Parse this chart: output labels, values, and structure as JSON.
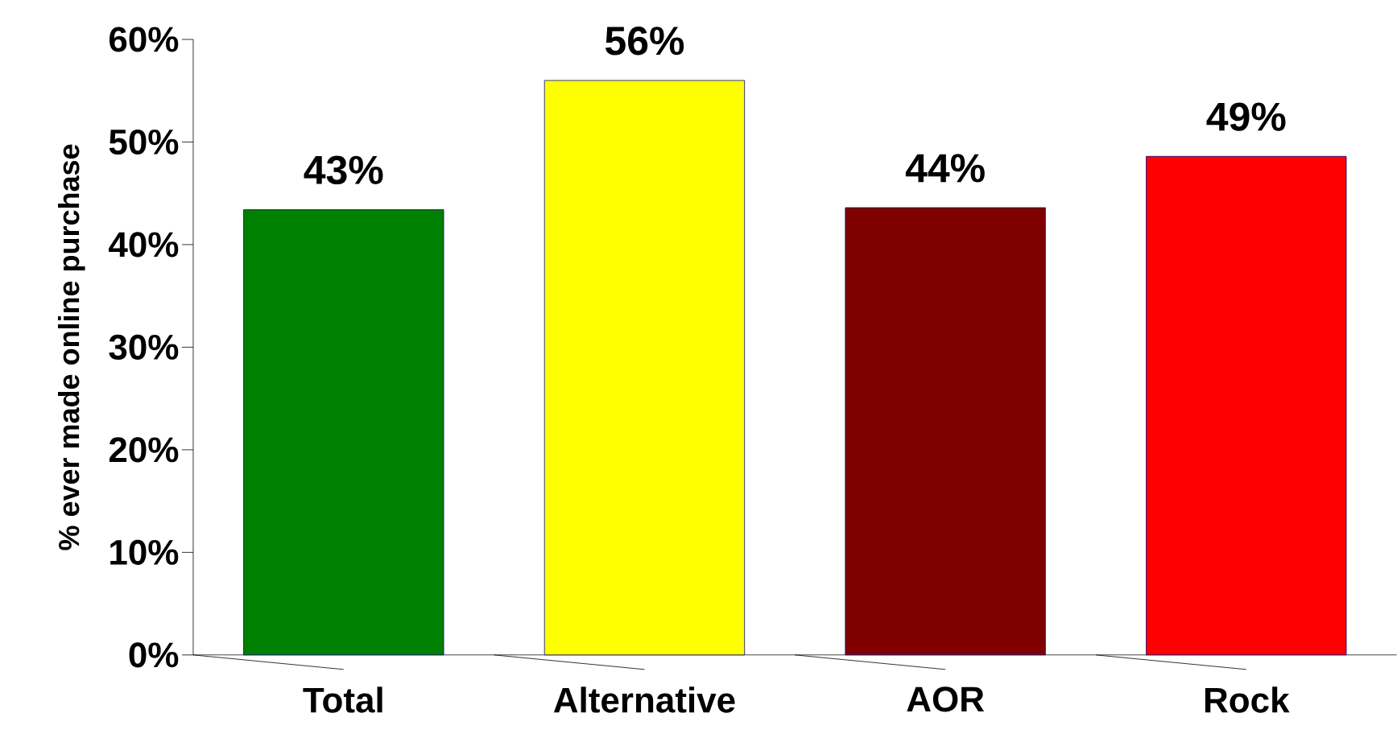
{
  "chart_data": {
    "type": "bar",
    "ylabel": "% ever made online purchase",
    "categories": [
      "Total",
      "Alternative",
      "AOR",
      "Rock"
    ],
    "values": [
      43.4,
      56,
      43.6,
      48.6
    ],
    "colors": [
      "#008000",
      "#ffff00",
      "#800000",
      "#ff0000"
    ],
    "value_labels": [
      "43%",
      "56%",
      "44%",
      "49%"
    ],
    "ylim": [
      0,
      60
    ],
    "yticks": [
      {
        "value": 0,
        "label": "0%"
      },
      {
        "value": 10,
        "label": "10%"
      },
      {
        "value": 20,
        "label": "20%"
      },
      {
        "value": 30,
        "label": "30%"
      },
      {
        "value": 40,
        "label": "40%"
      },
      {
        "value": 50,
        "label": "50%"
      },
      {
        "value": 60,
        "label": "60%"
      }
    ],
    "grid": false
  }
}
